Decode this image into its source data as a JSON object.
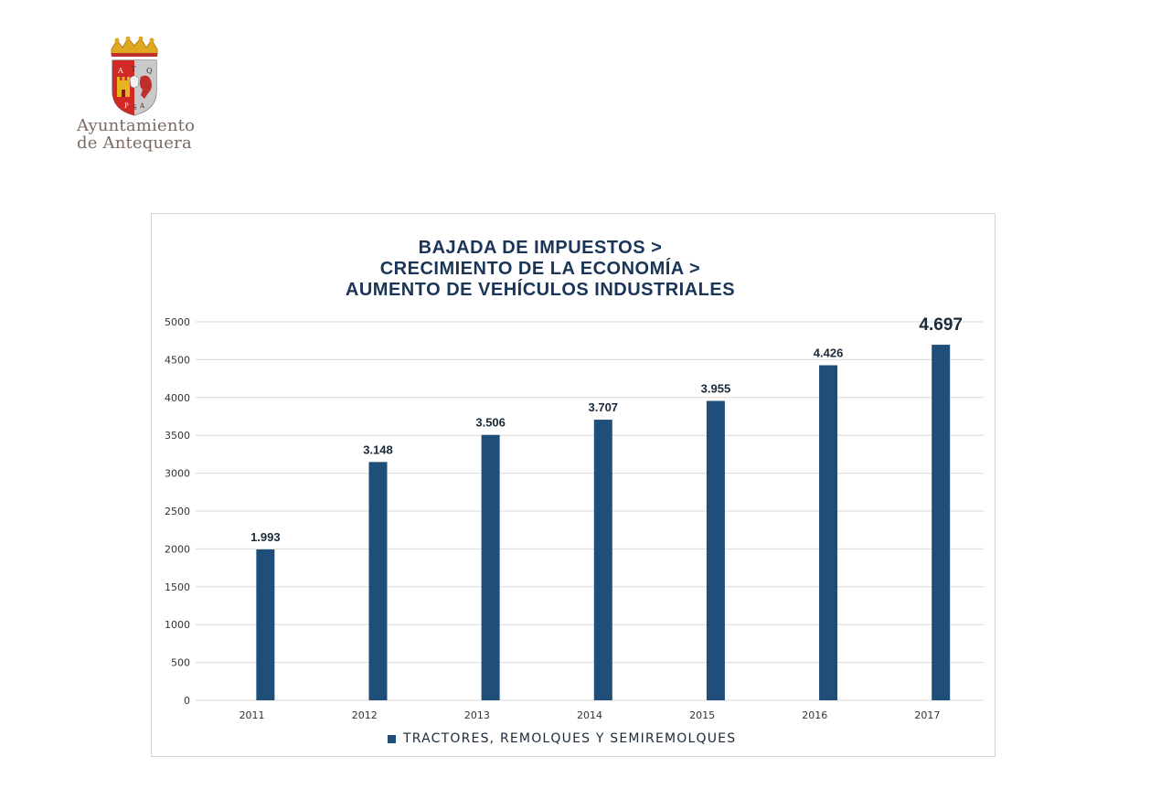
{
  "logo": {
    "line1": "Ayuntamiento",
    "line2": "de Antequera",
    "emblem_letters": [
      "A",
      "T",
      "Q",
      "P",
      "S",
      "A"
    ]
  },
  "chart_data": {
    "type": "bar",
    "title_lines": [
      "BAJADA DE IMPUESTOS >",
      "CRECIMIENTO DE LA ECONOMÍA >",
      "AUMENTO DE VEHÍCULOS INDUSTRIALES"
    ],
    "categories": [
      "2011",
      "2012",
      "2013",
      "2014",
      "2015",
      "2016",
      "2017"
    ],
    "series": [
      {
        "name": "TRACTORES, REMOLQUES Y SEMIREMOLQUES",
        "values": [
          1993,
          3148,
          3506,
          3707,
          3955,
          4426,
          4697
        ],
        "labels": [
          "1.993",
          "3.148",
          "3.506",
          "3.707",
          "3.955",
          "4.426",
          "4.697"
        ]
      }
    ],
    "ylim": [
      0,
      5000
    ],
    "yticks": [
      "0",
      "500",
      "1000",
      "1500",
      "2000",
      "2500",
      "3000",
      "3500",
      "4000",
      "4500",
      "5000"
    ],
    "grid": true,
    "legend_position": "bottom",
    "colors": {
      "bar": "#1f4e79",
      "title": "#1a3557",
      "grid": "#d9d9d9"
    }
  }
}
